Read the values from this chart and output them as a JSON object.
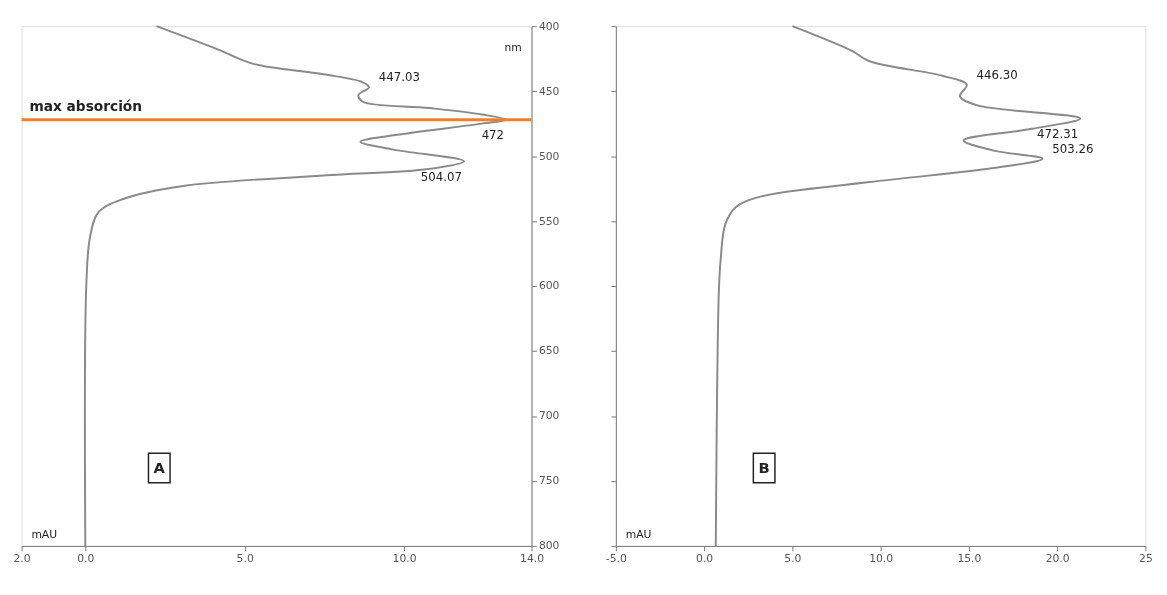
{
  "chart_data": [
    {
      "type": "line",
      "xlabel": "mAU",
      "ylabel": "nm",
      "series": [
        {
          "color": "#8a8a8a",
          "x": [
            2.23,
            4.17,
            5.27,
            7.47,
            8.69,
            8.9,
            8.57,
            8.69,
            10.8,
            12.44,
            13.2,
            12.44,
            9.67,
            8.63,
            9.67,
            11.88,
            10.77,
            7.47,
            3.07,
            1.19,
            0.42,
            0.15,
            0.03,
            0.0
          ],
          "values": [
            400,
            418,
            429,
            437,
            443,
            447,
            453,
            458,
            463,
            468,
            472,
            475,
            484,
            489,
            495,
            504,
            510,
            515,
            523,
            533,
            543,
            562,
            600,
            800
          ]
        }
      ],
      "xlim": [
        -2,
        14
      ],
      "xticks": [
        {
          "value": -2,
          "label": "2.0"
        },
        {
          "value": 0,
          "label": "0.0"
        },
        {
          "value": 5,
          "label": "5.0"
        },
        {
          "value": 10,
          "label": "10.0"
        },
        {
          "value": 14,
          "label": "14.0"
        }
      ],
      "ylim": [
        800,
        400
      ],
      "yticks": [
        400,
        450,
        500,
        550,
        600,
        650,
        700,
        750,
        800
      ],
      "ref_lines": [
        {
          "axis": "y",
          "value": 472,
          "label": "max absorción",
          "color": "#f07f2a"
        }
      ],
      "annotations": [
        {
          "text": "447.03",
          "x": 8.9,
          "y": 447
        },
        {
          "text": "472",
          "x": 13.2,
          "y": 472
        },
        {
          "text": "504.07",
          "x": 11.88,
          "y": 504
        },
        "A"
      ]
    },
    {
      "type": "line",
      "xlabel": "mAU",
      "series": [
        {
          "color": "#8a8a8a",
          "x": [
            5.0,
            8.37,
            9.37,
            13.44,
            14.88,
            14.49,
            15.48,
            21.3,
            18.57,
            14.7,
            16.5,
            19.17,
            16.5,
            9.37,
            3.25,
            1.82,
            1.21,
            0.94,
            0.83,
            0.66
          ],
          "values": [
            400,
            419,
            427,
            438,
            445,
            454,
            461,
            471,
            479,
            488,
            496,
            502,
            509,
            520,
            531,
            539,
            552,
            579,
            606,
            800
          ]
        }
      ],
      "xlim": [
        -5,
        25
      ],
      "xticks": [
        {
          "value": -5,
          "label": "-5.0"
        },
        {
          "value": 0,
          "label": "0.0"
        },
        {
          "value": 5,
          "label": "5.0"
        },
        {
          "value": 10,
          "label": "10.0"
        },
        {
          "value": 15,
          "label": "15.0"
        },
        {
          "value": 20,
          "label": "20.0"
        },
        {
          "value": 25,
          "label": "25"
        }
      ],
      "ylim": [
        800,
        400
      ],
      "yticks": [
        400,
        450,
        500,
        550,
        600,
        650,
        700,
        750,
        800
      ],
      "tick_labels": "x",
      "annotations": [
        {
          "text": "446.30",
          "x": 14.88,
          "y": 445
        },
        {
          "text": "472.31",
          "x": 21.3,
          "y": 471
        },
        {
          "text": "503.26",
          "x": 19.17,
          "y": 502
        },
        "B"
      ]
    }
  ]
}
